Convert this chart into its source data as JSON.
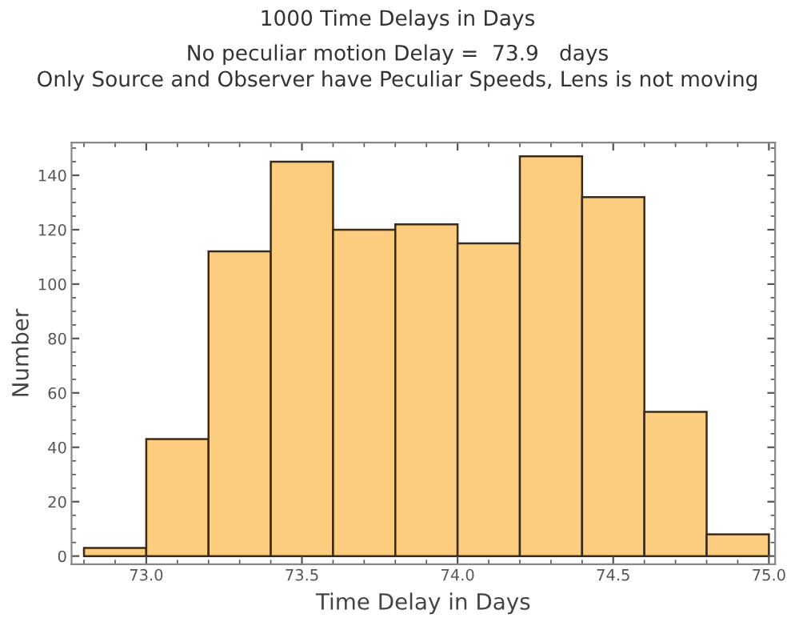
{
  "chart_data": {
    "type": "histogram",
    "title": "1000 Time Delays in Days",
    "subtitle": "No peculiar motion Delay =  73.9   days\nOnly Source and Observer have Peculiar Speeds, Lens is not moving",
    "xlabel": "Time Delay in Days",
    "ylabel": "Number",
    "bins": [
      72.8,
      73.0,
      73.2,
      73.4,
      73.6,
      73.8,
      74.0,
      74.2,
      74.4,
      74.6,
      74.8,
      75.0
    ],
    "values": [
      3,
      43,
      112,
      145,
      120,
      122,
      115,
      147,
      132,
      53,
      8
    ],
    "color": "#fccd7f",
    "xlim": [
      72.76,
      75.02
    ],
    "ylim": [
      -3,
      152
    ],
    "xticks": [
      {
        "value": 73.0,
        "label": "73.0"
      },
      {
        "value": 73.5,
        "label": "73.5"
      },
      {
        "value": 74.0,
        "label": "74.0"
      },
      {
        "value": 74.5,
        "label": "74.5"
      },
      {
        "value": 75.0,
        "label": "75.0"
      }
    ],
    "yticks": [
      0,
      20,
      40,
      60,
      80,
      100,
      120,
      140
    ],
    "grid": false
  }
}
